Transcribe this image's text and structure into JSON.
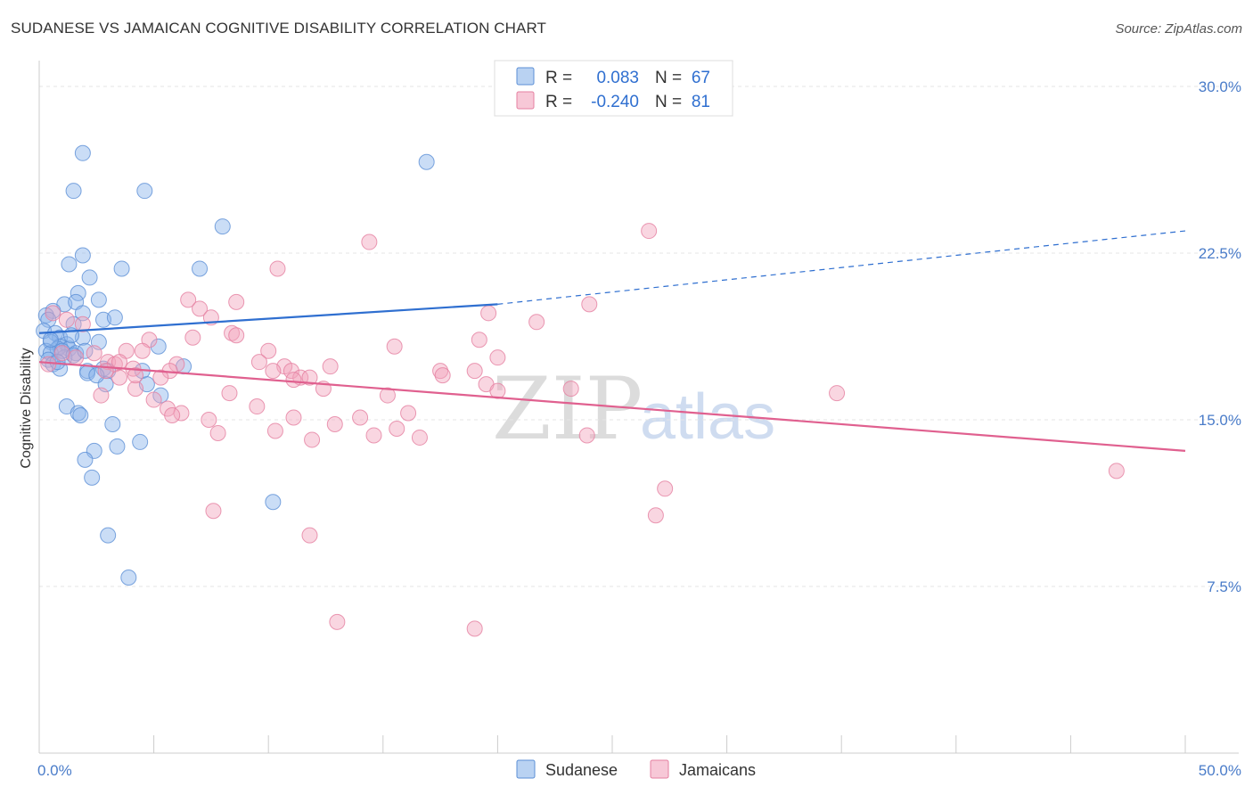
{
  "header": {
    "title": "SUDANESE VS JAMAICAN COGNITIVE DISABILITY CORRELATION CHART",
    "source": "Source: ZipAtlas.com"
  },
  "watermark": {
    "zip": "ZIP",
    "atlas": "atlas"
  },
  "chart_data": {
    "type": "scatter",
    "ylabel": "Cognitive Disability",
    "xlim": [
      0,
      50
    ],
    "ylim": [
      0,
      30
    ],
    "y_ticks": [
      {
        "value": 7.5,
        "label": "7.5%"
      },
      {
        "value": 15.0,
        "label": "15.0%"
      },
      {
        "value": 22.5,
        "label": "22.5%"
      },
      {
        "value": 30.0,
        "label": "30.0%"
      }
    ],
    "x_tick_labels": [
      {
        "value": 0,
        "label": "0.0%"
      },
      {
        "value": 50,
        "label": "50.0%"
      }
    ],
    "legend_stats": [
      {
        "r_label": "R =",
        "r_value": "0.083",
        "n_label": "N =",
        "n_value": "67",
        "color": "#8ab4ea"
      },
      {
        "r_label": "R =",
        "r_value": "-0.240",
        "n_label": "N =",
        "n_value": "81",
        "color": "#f2a3bd"
      }
    ],
    "series": [
      {
        "name": "Sudanese",
        "color": "#8ab4ea",
        "stroke": "#5b8fd6",
        "trend": {
          "x0": 0,
          "y0": 18.9,
          "x1": 20,
          "y1": 20.2,
          "dash_to_x": 50,
          "dash_to_y": 23.5,
          "color": "#2f6fd0"
        },
        "points": [
          [
            1.9,
            27.0
          ],
          [
            16.9,
            26.6
          ],
          [
            1.5,
            25.3
          ],
          [
            4.6,
            25.3
          ],
          [
            8.0,
            23.7
          ],
          [
            1.9,
            22.4
          ],
          [
            1.3,
            22.0
          ],
          [
            3.6,
            21.8
          ],
          [
            7.0,
            21.8
          ],
          [
            2.2,
            21.4
          ],
          [
            1.7,
            20.7
          ],
          [
            2.6,
            20.4
          ],
          [
            1.1,
            20.2
          ],
          [
            1.6,
            20.3
          ],
          [
            0.6,
            19.9
          ],
          [
            1.9,
            19.8
          ],
          [
            0.3,
            19.7
          ],
          [
            0.4,
            19.5
          ],
          [
            2.8,
            19.5
          ],
          [
            3.3,
            19.6
          ],
          [
            1.5,
            19.3
          ],
          [
            0.2,
            19.0
          ],
          [
            0.7,
            18.9
          ],
          [
            0.9,
            18.7
          ],
          [
            1.9,
            18.7
          ],
          [
            0.5,
            18.5
          ],
          [
            1.2,
            18.4
          ],
          [
            2.6,
            18.5
          ],
          [
            0.9,
            18.3
          ],
          [
            1.3,
            18.2
          ],
          [
            5.2,
            18.3
          ],
          [
            0.3,
            18.1
          ],
          [
            0.8,
            18.2
          ],
          [
            0.5,
            18.0
          ],
          [
            1.6,
            18.0
          ],
          [
            1.1,
            17.8
          ],
          [
            0.4,
            17.7
          ],
          [
            0.6,
            17.5
          ],
          [
            2.8,
            17.3
          ],
          [
            0.9,
            17.3
          ],
          [
            2.1,
            17.2
          ],
          [
            3.0,
            17.2
          ],
          [
            6.3,
            17.4
          ],
          [
            2.1,
            17.1
          ],
          [
            4.5,
            17.2
          ],
          [
            2.9,
            16.6
          ],
          [
            4.7,
            16.6
          ],
          [
            5.3,
            16.1
          ],
          [
            1.2,
            15.6
          ],
          [
            1.7,
            15.3
          ],
          [
            1.8,
            15.2
          ],
          [
            3.2,
            14.8
          ],
          [
            4.4,
            14.0
          ],
          [
            2.4,
            13.6
          ],
          [
            3.4,
            13.8
          ],
          [
            2.0,
            13.2
          ],
          [
            2.3,
            12.4
          ],
          [
            10.2,
            11.3
          ],
          [
            3.0,
            9.8
          ],
          [
            3.9,
            7.9
          ],
          [
            0.5,
            18.6
          ],
          [
            1.0,
            18.1
          ],
          [
            1.5,
            17.9
          ],
          [
            2.0,
            18.1
          ],
          [
            0.8,
            17.6
          ],
          [
            1.4,
            18.8
          ],
          [
            2.5,
            17.0
          ]
        ]
      },
      {
        "name": "Jamaicans",
        "color": "#f2a3bd",
        "stroke": "#e57fa0",
        "trend": {
          "x0": 0,
          "y0": 17.6,
          "x1": 50,
          "y1": 13.6,
          "color": "#e0608f"
        },
        "points": [
          [
            26.6,
            23.5
          ],
          [
            14.4,
            23.0
          ],
          [
            10.4,
            21.8
          ],
          [
            6.5,
            20.4
          ],
          [
            8.6,
            20.3
          ],
          [
            24.0,
            20.2
          ],
          [
            7.0,
            20.0
          ],
          [
            19.6,
            19.8
          ],
          [
            7.5,
            19.6
          ],
          [
            21.7,
            19.4
          ],
          [
            1.2,
            19.5
          ],
          [
            0.6,
            19.8
          ],
          [
            1.9,
            19.3
          ],
          [
            8.4,
            18.9
          ],
          [
            8.6,
            18.8
          ],
          [
            4.8,
            18.6
          ],
          [
            6.7,
            18.7
          ],
          [
            19.2,
            18.6
          ],
          [
            15.5,
            18.3
          ],
          [
            3.8,
            18.1
          ],
          [
            4.5,
            18.1
          ],
          [
            10.0,
            18.1
          ],
          [
            2.4,
            18.0
          ],
          [
            1.0,
            18.0
          ],
          [
            1.6,
            17.8
          ],
          [
            20.0,
            17.8
          ],
          [
            3.0,
            17.6
          ],
          [
            0.4,
            17.5
          ],
          [
            9.6,
            17.6
          ],
          [
            3.3,
            17.5
          ],
          [
            3.5,
            17.6
          ],
          [
            6.0,
            17.5
          ],
          [
            10.7,
            17.4
          ],
          [
            12.7,
            17.4
          ],
          [
            17.5,
            17.2
          ],
          [
            19.0,
            17.2
          ],
          [
            5.7,
            17.2
          ],
          [
            4.1,
            17.3
          ],
          [
            2.9,
            17.2
          ],
          [
            11.0,
            17.2
          ],
          [
            10.2,
            17.2
          ],
          [
            17.6,
            17.0
          ],
          [
            11.4,
            16.9
          ],
          [
            11.1,
            16.8
          ],
          [
            11.8,
            16.9
          ],
          [
            3.5,
            16.9
          ],
          [
            5.3,
            16.9
          ],
          [
            19.5,
            16.6
          ],
          [
            12.4,
            16.4
          ],
          [
            4.2,
            16.4
          ],
          [
            15.2,
            16.1
          ],
          [
            20.0,
            16.3
          ],
          [
            8.3,
            16.2
          ],
          [
            23.2,
            16.4
          ],
          [
            34.8,
            16.2
          ],
          [
            2.7,
            16.1
          ],
          [
            5.0,
            15.9
          ],
          [
            9.5,
            15.6
          ],
          [
            5.6,
            15.5
          ],
          [
            16.1,
            15.3
          ],
          [
            6.2,
            15.3
          ],
          [
            11.1,
            15.1
          ],
          [
            5.8,
            15.2
          ],
          [
            14.0,
            15.1
          ],
          [
            7.4,
            15.0
          ],
          [
            12.9,
            14.8
          ],
          [
            15.6,
            14.6
          ],
          [
            10.3,
            14.5
          ],
          [
            7.8,
            14.4
          ],
          [
            14.6,
            14.3
          ],
          [
            16.6,
            14.2
          ],
          [
            11.9,
            14.1
          ],
          [
            47.0,
            12.7
          ],
          [
            27.3,
            11.9
          ],
          [
            26.9,
            10.7
          ],
          [
            7.6,
            10.9
          ],
          [
            11.8,
            9.8
          ],
          [
            13.0,
            5.9
          ],
          [
            19.0,
            5.6
          ],
          [
            23.9,
            14.3
          ],
          [
            4.2,
            17.0
          ]
        ]
      }
    ]
  }
}
